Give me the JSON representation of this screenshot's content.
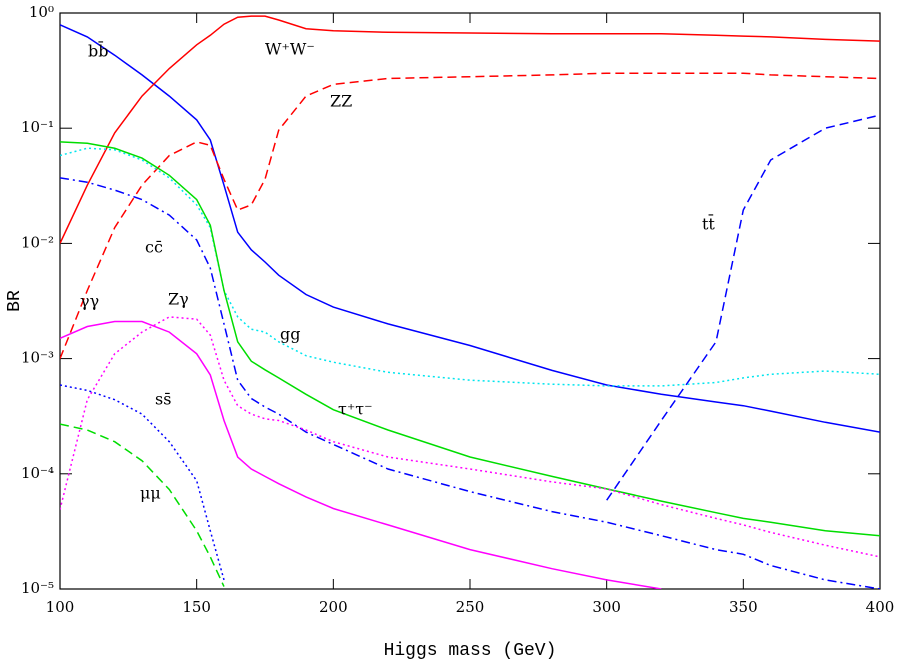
{
  "chart_data": {
    "type": "line",
    "xlabel": "Higgs mass (GeV)",
    "ylabel": "BR",
    "xlim": [
      100,
      400
    ],
    "xticks": [
      100,
      150,
      200,
      250,
      300,
      350,
      400
    ],
    "ylim": [
      1e-05,
      1
    ],
    "ylog": true,
    "yticks": [
      {
        "value": 1e-05,
        "label": "10⁻⁵"
      },
      {
        "value": 0.0001,
        "label": "10⁻⁴"
      },
      {
        "value": 0.001,
        "label": "10⁻³"
      },
      {
        "value": 0.01,
        "label": "10⁻²"
      },
      {
        "value": 0.1,
        "label": "10⁻¹"
      },
      {
        "value": 1,
        "label": "10⁰"
      }
    ],
    "x": [
      100,
      110,
      120,
      130,
      140,
      150,
      155,
      160,
      165,
      170,
      175,
      180,
      190,
      200,
      220,
      250,
      280,
      300,
      320,
      340,
      350,
      360,
      380,
      400
    ],
    "series": [
      {
        "name": "bb̄",
        "color": "#0000ff",
        "dash": "solid",
        "values": [
          0.79,
          0.62,
          0.43,
          0.29,
          0.19,
          0.118,
          0.079,
          0.032,
          0.0125,
          0.0088,
          0.0069,
          0.0053,
          0.0036,
          0.0028,
          0.002,
          0.0013,
          0.00079,
          0.00059,
          0.00049,
          0.00042,
          0.00039,
          0.00035,
          0.00028,
          0.00023
        ]
      },
      {
        "name": "W⁺W⁻",
        "color": "#ff0000",
        "dash": "solid",
        "values": [
          0.01,
          0.032,
          0.091,
          0.19,
          0.33,
          0.53,
          0.64,
          0.8,
          0.92,
          0.94,
          0.94,
          0.87,
          0.73,
          0.7,
          0.68,
          0.67,
          0.66,
          0.66,
          0.66,
          0.64,
          0.63,
          0.62,
          0.59,
          0.57
        ]
      },
      {
        "name": "ZZ",
        "color": "#ff0000",
        "dash": "dashed",
        "values": [
          0.001,
          0.0039,
          0.0137,
          0.032,
          0.058,
          0.076,
          0.071,
          0.036,
          0.0195,
          0.0216,
          0.036,
          0.096,
          0.19,
          0.24,
          0.27,
          0.28,
          0.29,
          0.3,
          0.3,
          0.3,
          0.3,
          0.29,
          0.28,
          0.27
        ]
      },
      {
        "name": "tt̄",
        "color": "#0000ff",
        "dash": "dashed",
        "values": [
          null,
          null,
          null,
          null,
          null,
          null,
          null,
          null,
          null,
          null,
          null,
          null,
          null,
          null,
          null,
          null,
          null,
          5.9e-05,
          0.00029,
          0.0014,
          0.0195,
          0.053,
          0.1,
          0.13
        ]
      },
      {
        "name": "gg",
        "color": "#00e5ee",
        "dash": "dotted",
        "values": [
          0.058,
          0.067,
          0.065,
          0.053,
          0.037,
          0.0216,
          0.0137,
          0.0039,
          0.0023,
          0.0018,
          0.0017,
          0.0014,
          0.00106,
          0.00093,
          0.00076,
          0.00065,
          0.0006,
          0.00058,
          0.00058,
          0.00062,
          0.00068,
          0.00073,
          0.00078,
          0.00073
        ]
      },
      {
        "name": "τ⁺τ⁻",
        "color": "#00dd00",
        "dash": "solid",
        "values": [
          0.076,
          0.074,
          0.067,
          0.055,
          0.039,
          0.024,
          0.0144,
          0.0039,
          0.0014,
          0.00095,
          0.0008,
          0.00068,
          0.00049,
          0.00036,
          0.00024,
          0.00014,
          9.5e-05,
          7.4e-05,
          5.8e-05,
          4.6e-05,
          4.1e-05,
          3.8e-05,
          3.2e-05,
          2.9e-05
        ]
      },
      {
        "name": "cc̄",
        "color": "#0000ff",
        "dash": "dashdot",
        "values": [
          0.037,
          0.034,
          0.029,
          0.024,
          0.0176,
          0.0107,
          0.0061,
          0.002,
          0.00065,
          0.00045,
          0.00038,
          0.00033,
          0.00023,
          0.00018,
          0.00011,
          7e-05,
          4.7e-05,
          3.8e-05,
          2.9e-05,
          2.2e-05,
          2e-05,
          1.6e-05,
          1.2e-05,
          1e-05
        ]
      },
      {
        "name": "Zγ",
        "color": "#ff00ff",
        "dash": "dotted",
        "values": [
          4.9e-05,
          0.00044,
          0.0011,
          0.0017,
          0.0023,
          0.0022,
          0.0016,
          0.00065,
          0.00039,
          0.00033,
          0.0003,
          0.00029,
          0.00024,
          0.00019,
          0.00014,
          0.00011,
          8.5e-05,
          7.4e-05,
          5.4e-05,
          4.1e-05,
          3.6e-05,
          3.1e-05,
          2.4e-05,
          1.9e-05
        ]
      },
      {
        "name": "γγ",
        "color": "#ff00ff",
        "dash": "solid",
        "values": [
          0.0015,
          0.0019,
          0.0021,
          0.0021,
          0.0017,
          0.0011,
          0.00072,
          0.00029,
          0.00014,
          0.00011,
          9.5e-05,
          8.2e-05,
          6.3e-05,
          5e-05,
          3.6e-05,
          2.2e-05,
          1.5e-05,
          1.2e-05,
          1e-05,
          null,
          null,
          null,
          null,
          null
        ]
      },
      {
        "name": "ss̄",
        "color": "#0000ff",
        "dash": "dotted",
        "values": [
          0.00059,
          0.00053,
          0.00044,
          0.00033,
          0.00019,
          8.7e-05,
          3.2e-05,
          1.2e-05,
          null,
          null,
          null,
          null,
          null,
          null,
          null,
          null,
          null,
          null,
          null,
          null,
          null,
          null,
          null,
          null
        ]
      },
      {
        "name": "μμ",
        "color": "#00dd00",
        "dash": "dashed",
        "values": [
          0.00027,
          0.00024,
          0.00019,
          0.00013,
          7.3e-05,
          3.2e-05,
          1.9e-05,
          1.05e-05,
          null,
          null,
          null,
          null,
          null,
          null,
          null,
          null,
          null,
          null,
          null,
          null,
          null,
          null,
          null,
          null
        ]
      }
    ]
  }
}
